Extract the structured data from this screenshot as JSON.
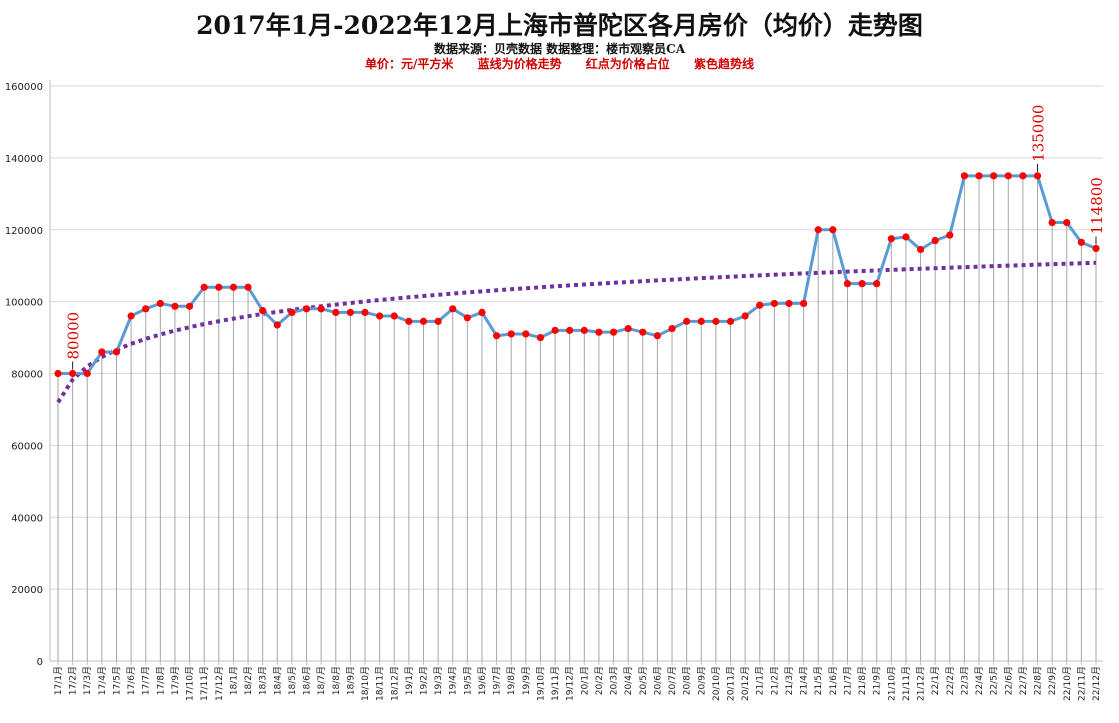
{
  "title": "2017年1月-2022年12月上海市普陀区各月房价（均价）走势图",
  "subtitle": "数据来源：贝壳数据     数据整理：楼市观察员CA",
  "notes": [
    "单价：元/平方米",
    "蓝线为价格走势",
    "红点为价格占位",
    "紫色趋势线"
  ],
  "colors": {
    "line": "#5b9bd5",
    "point": "#ff0000",
    "trend": "#7030a0",
    "annotation": "#e00000",
    "grid": "#d9d9d9",
    "droplines": "#a6a6a6"
  },
  "chart_data": {
    "type": "line",
    "title": "2017年1月-2022年12月上海市普陀区各月房价（均价）走势图",
    "xlabel": "",
    "ylabel": "",
    "ylim": [
      0,
      160000
    ],
    "yticks": [
      "0",
      "20000",
      "40000",
      "60000",
      "80000",
      "100000",
      "120000",
      "140000",
      "160000"
    ],
    "grid": true,
    "legend": "none",
    "categories": [
      "17/1月",
      "17/2月",
      "17/3月",
      "17/4月",
      "17/5月",
      "17/6月",
      "17/7月",
      "17/8月",
      "17/9月",
      "17/10月",
      "17/11月",
      "17/12月",
      "18/1月",
      "18/2月",
      "18/3月",
      "18/4月",
      "18/5月",
      "18/6月",
      "18/7月",
      "18/8月",
      "18/9月",
      "18/10月",
      "18/11月",
      "18/12月",
      "19/1月",
      "19/2月",
      "19/3月",
      "19/4月",
      "19/5月",
      "19/6月",
      "19/7月",
      "19/8月",
      "19/9月",
      "19/10月",
      "19/11月",
      "19/12月",
      "20/1月",
      "20/2月",
      "20/3月",
      "20/4月",
      "20/5月",
      "20/6月",
      "20/7月",
      "20/8月",
      "20/9月",
      "20/10月",
      "20/11月",
      "20/12月",
      "21/1月",
      "21/2月",
      "21/3月",
      "21/4月",
      "21/5月",
      "21/6月",
      "21/7月",
      "21/8月",
      "21/9月",
      "21/10月",
      "21/11月",
      "21/12月",
      "22/1月",
      "22/2月",
      "22/3月",
      "22/4月",
      "22/5月",
      "22/6月",
      "22/7月",
      "22/8月",
      "22/9月",
      "22/10月",
      "22/11月",
      "22/12月"
    ],
    "series": [
      {
        "values": [
          80000,
          80000,
          80000,
          86000,
          86000,
          96000,
          98000,
          99500,
          98700,
          98700,
          104000,
          104000,
          104000,
          104000,
          97500,
          93500,
          97000,
          98000,
          98000,
          97000,
          97000,
          97000,
          96000,
          96000,
          94500,
          94500,
          94500,
          98000,
          95500,
          97000,
          90500,
          91000,
          91000,
          90000,
          92000,
          92000,
          92000,
          91500,
          91500,
          92500,
          91500,
          90500,
          92500,
          94500,
          94500,
          94500,
          94500,
          96000,
          99000,
          99500,
          99500,
          99500,
          120000,
          120000,
          105000,
          105000,
          105000,
          117500,
          118000,
          114500,
          117000,
          118500,
          135000,
          135000,
          135000,
          135000,
          135000,
          135000,
          122000,
          122000,
          116500,
          114800
        ]
      }
    ],
    "trendline": {
      "type": "logarithmic",
      "start": 72000,
      "end": 110800
    },
    "annotations": [
      {
        "category": "17/2月",
        "text": "80000"
      },
      {
        "category": "22/8月",
        "text": "135000"
      },
      {
        "category": "22/12月",
        "text": "114800"
      }
    ]
  }
}
